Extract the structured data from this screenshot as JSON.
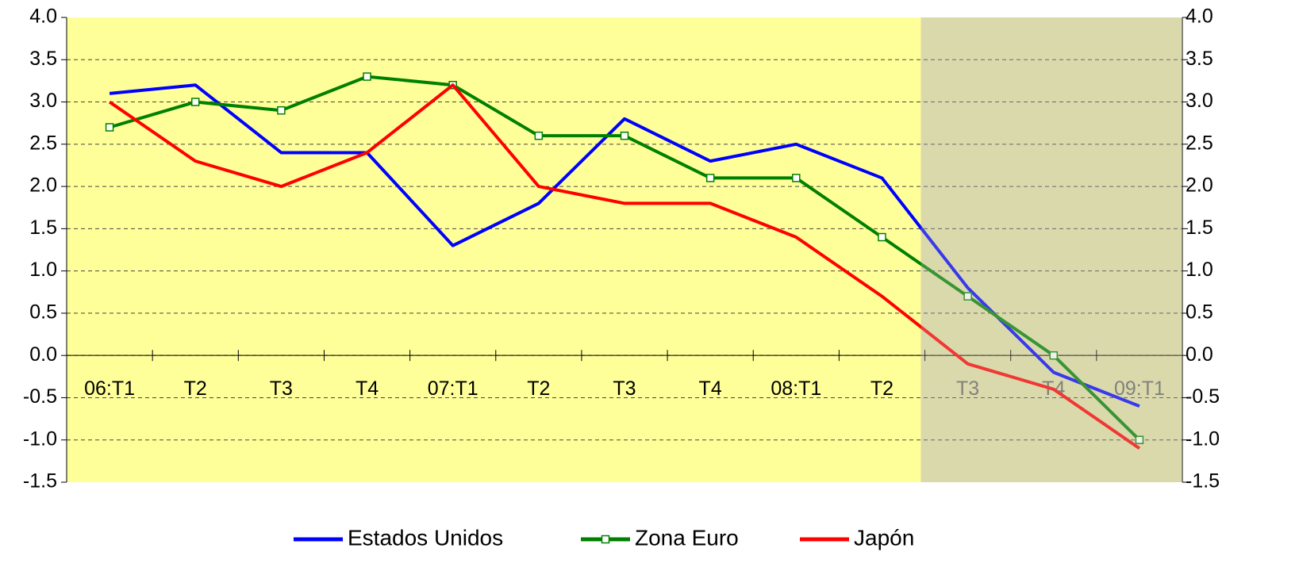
{
  "chart_data": {
    "type": "line",
    "categories": [
      "06:T1",
      "T2",
      "T3",
      "T4",
      "07:T1",
      "T2",
      "T3",
      "T4",
      "08:T1",
      "T2",
      "T3",
      "T4",
      "09:T1"
    ],
    "series": [
      {
        "name": "Estados Unidos",
        "color": "#0000ff",
        "values": [
          3.1,
          3.2,
          2.4,
          2.4,
          1.3,
          1.8,
          2.8,
          2.3,
          2.5,
          2.1,
          0.8,
          -0.2,
          -0.6
        ]
      },
      {
        "name": "Zona Euro",
        "color": "#008000",
        "values": [
          2.7,
          3.0,
          2.9,
          3.3,
          3.2,
          2.6,
          2.6,
          2.1,
          2.1,
          1.4,
          0.7,
          0.0,
          -1.0
        ]
      },
      {
        "name": "Japón",
        "color": "#ff0000",
        "values": [
          3.0,
          2.3,
          2.0,
          2.4,
          3.2,
          2.0,
          1.8,
          1.8,
          1.4,
          0.7,
          -0.1,
          -0.4,
          -1.1
        ]
      }
    ],
    "ylim": [
      -1.5,
      4.0
    ],
    "yticks": [
      {
        "value": -1.5,
        "label": "-1.5"
      },
      {
        "value": -1.0,
        "label": "-1.0"
      },
      {
        "value": -0.5,
        "label": "-0.5"
      },
      {
        "value": 0,
        "label": "0.0"
      },
      {
        "value": 0.5,
        "label": "0.5"
      },
      {
        "value": 1.0,
        "label": "1.0"
      },
      {
        "value": 1.5,
        "label": "1.5"
      },
      {
        "value": 2.0,
        "label": "2.0"
      },
      {
        "value": 2.5,
        "label": "2.5"
      },
      {
        "value": 3.0,
        "label": "3.0"
      },
      {
        "value": 3.5,
        "label": "3.5"
      },
      {
        "value": 4.0,
        "label": "4.0"
      }
    ],
    "y2lim": [
      -1.5,
      4.0
    ],
    "y2ticks": [
      {
        "value": -1.5,
        "label": "-1.5"
      },
      {
        "value": -1.0,
        "label": "-1.0"
      },
      {
        "value": -0.5,
        "label": "-0.5"
      },
      {
        "value": 0,
        "label": "0.0"
      },
      {
        "value": 0.5,
        "label": "0.5"
      },
      {
        "value": 1.0,
        "label": "1.0"
      },
      {
        "value": 1.5,
        "label": "1.5"
      },
      {
        "value": 2.0,
        "label": "2.0"
      },
      {
        "value": 2.5,
        "label": "2.5"
      },
      {
        "value": 3.0,
        "label": "3.0"
      },
      {
        "value": 3.5,
        "label": "3.5"
      },
      {
        "value": 4.0,
        "label": "4.0"
      }
    ],
    "grid": true,
    "legend": "bottom"
  }
}
